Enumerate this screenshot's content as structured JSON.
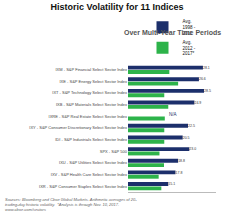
{
  "chart_data": {
    "type": "bar",
    "orientation": "horizontal",
    "title": "Historic Volatility for 11 Indices",
    "subtitle": "Over Multi-Year Time Periods",
    "annotations": [
      "Sources: Bloomberg and Cboe Global Markets. Arithmetic averages of 20-\ntrading-day historic volatility.  *Analysis is through Nov. 10, 2017.\nwww.cboe.com/sectors"
    ],
    "categories": [
      "IXM - S&P Financial Select Sector Index",
      "IXE - S&P Energy Select Sector Index",
      "IXT - S&P Technology Select Sector Index",
      "IXB - S&P Materials Select Sector Index",
      "IXRE - S&P Real Estate Select Sector Index",
      "IXY - S&P Consumer Discretionary Select Sector Index",
      "IDI - S&P Industrials Select Sector Index",
      "SPX - S&P 500",
      "IXU - S&P Utilities Select Sector Index",
      "IXV - S&P Health Care Select Sector Index",
      "IXR - S&P Consumer Staples Select Sector Index"
    ],
    "series": [
      {
        "name": "Avg.\n1998 -\n2011",
        "color": "#1c2f6b",
        "values": [
          28.1,
          26.6,
          28.5,
          24.9,
          null,
          22.5,
          20.5,
          23.0,
          18.8,
          17.8,
          15.1
        ],
        "value_labels": [
          "28.1",
          "26.6",
          "28.5",
          "24.9",
          "N/A",
          "22.5",
          "20.5",
          "23.0",
          "18.8",
          "17.8",
          "15.1"
        ],
        "data_labels": true
      },
      {
        "name": "Avg.\n2012 -\n2017*",
        "color": "#2db34a",
        "values": [
          15.5,
          18.8,
          13.6,
          15.1,
          13.8,
          13.6,
          13.6,
          11.8,
          13.5,
          11.5,
          12.5
        ]
      }
    ],
    "xlim": [
      0,
      33
    ],
    "grid": false,
    "legend": "top",
    "tick_labels": "y"
  }
}
